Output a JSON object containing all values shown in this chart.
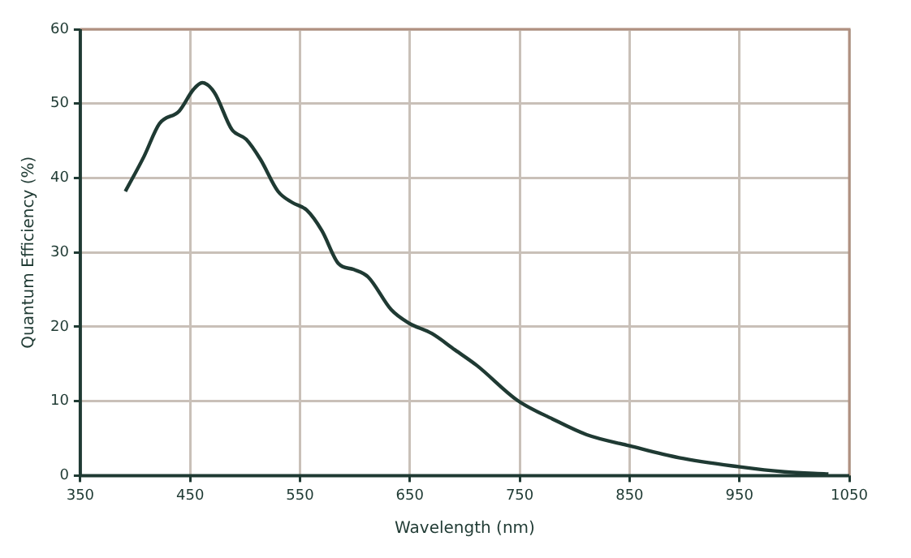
{
  "chart_data": {
    "type": "line",
    "xlabel": "Wavelength (nm)",
    "ylabel": "Quantum Efficiency (%)",
    "x": [
      391,
      408,
      422,
      440,
      453,
      461,
      472,
      488,
      501,
      514,
      530,
      543,
      556,
      570,
      585,
      599,
      612,
      633,
      649,
      670,
      691,
      711,
      748,
      780,
      811,
      850,
      895,
      949,
      991,
      1031
    ],
    "series": [
      {
        "color": "#1f3a33",
        "values": [
          38.2,
          42.9,
          47.3,
          49.0,
          51.9,
          52.8,
          51.5,
          46.5,
          45.2,
          42.5,
          38.2,
          36.7,
          35.7,
          32.9,
          28.5,
          27.7,
          26.7,
          22.3,
          20.5,
          19.1,
          16.9,
          14.8,
          10.1,
          7.6,
          5.5,
          4.0,
          2.4,
          1.2,
          0.5,
          0.2
        ]
      }
    ],
    "xlim": [
      350,
      1050
    ],
    "xticks": [
      350,
      450,
      550,
      650,
      750,
      850,
      950,
      1050
    ],
    "ylim": [
      0,
      60
    ],
    "yticks": [
      0,
      10,
      20,
      30,
      40,
      50,
      60
    ],
    "grid": true,
    "legend": false,
    "marker": "none",
    "line_style": "solid"
  }
}
